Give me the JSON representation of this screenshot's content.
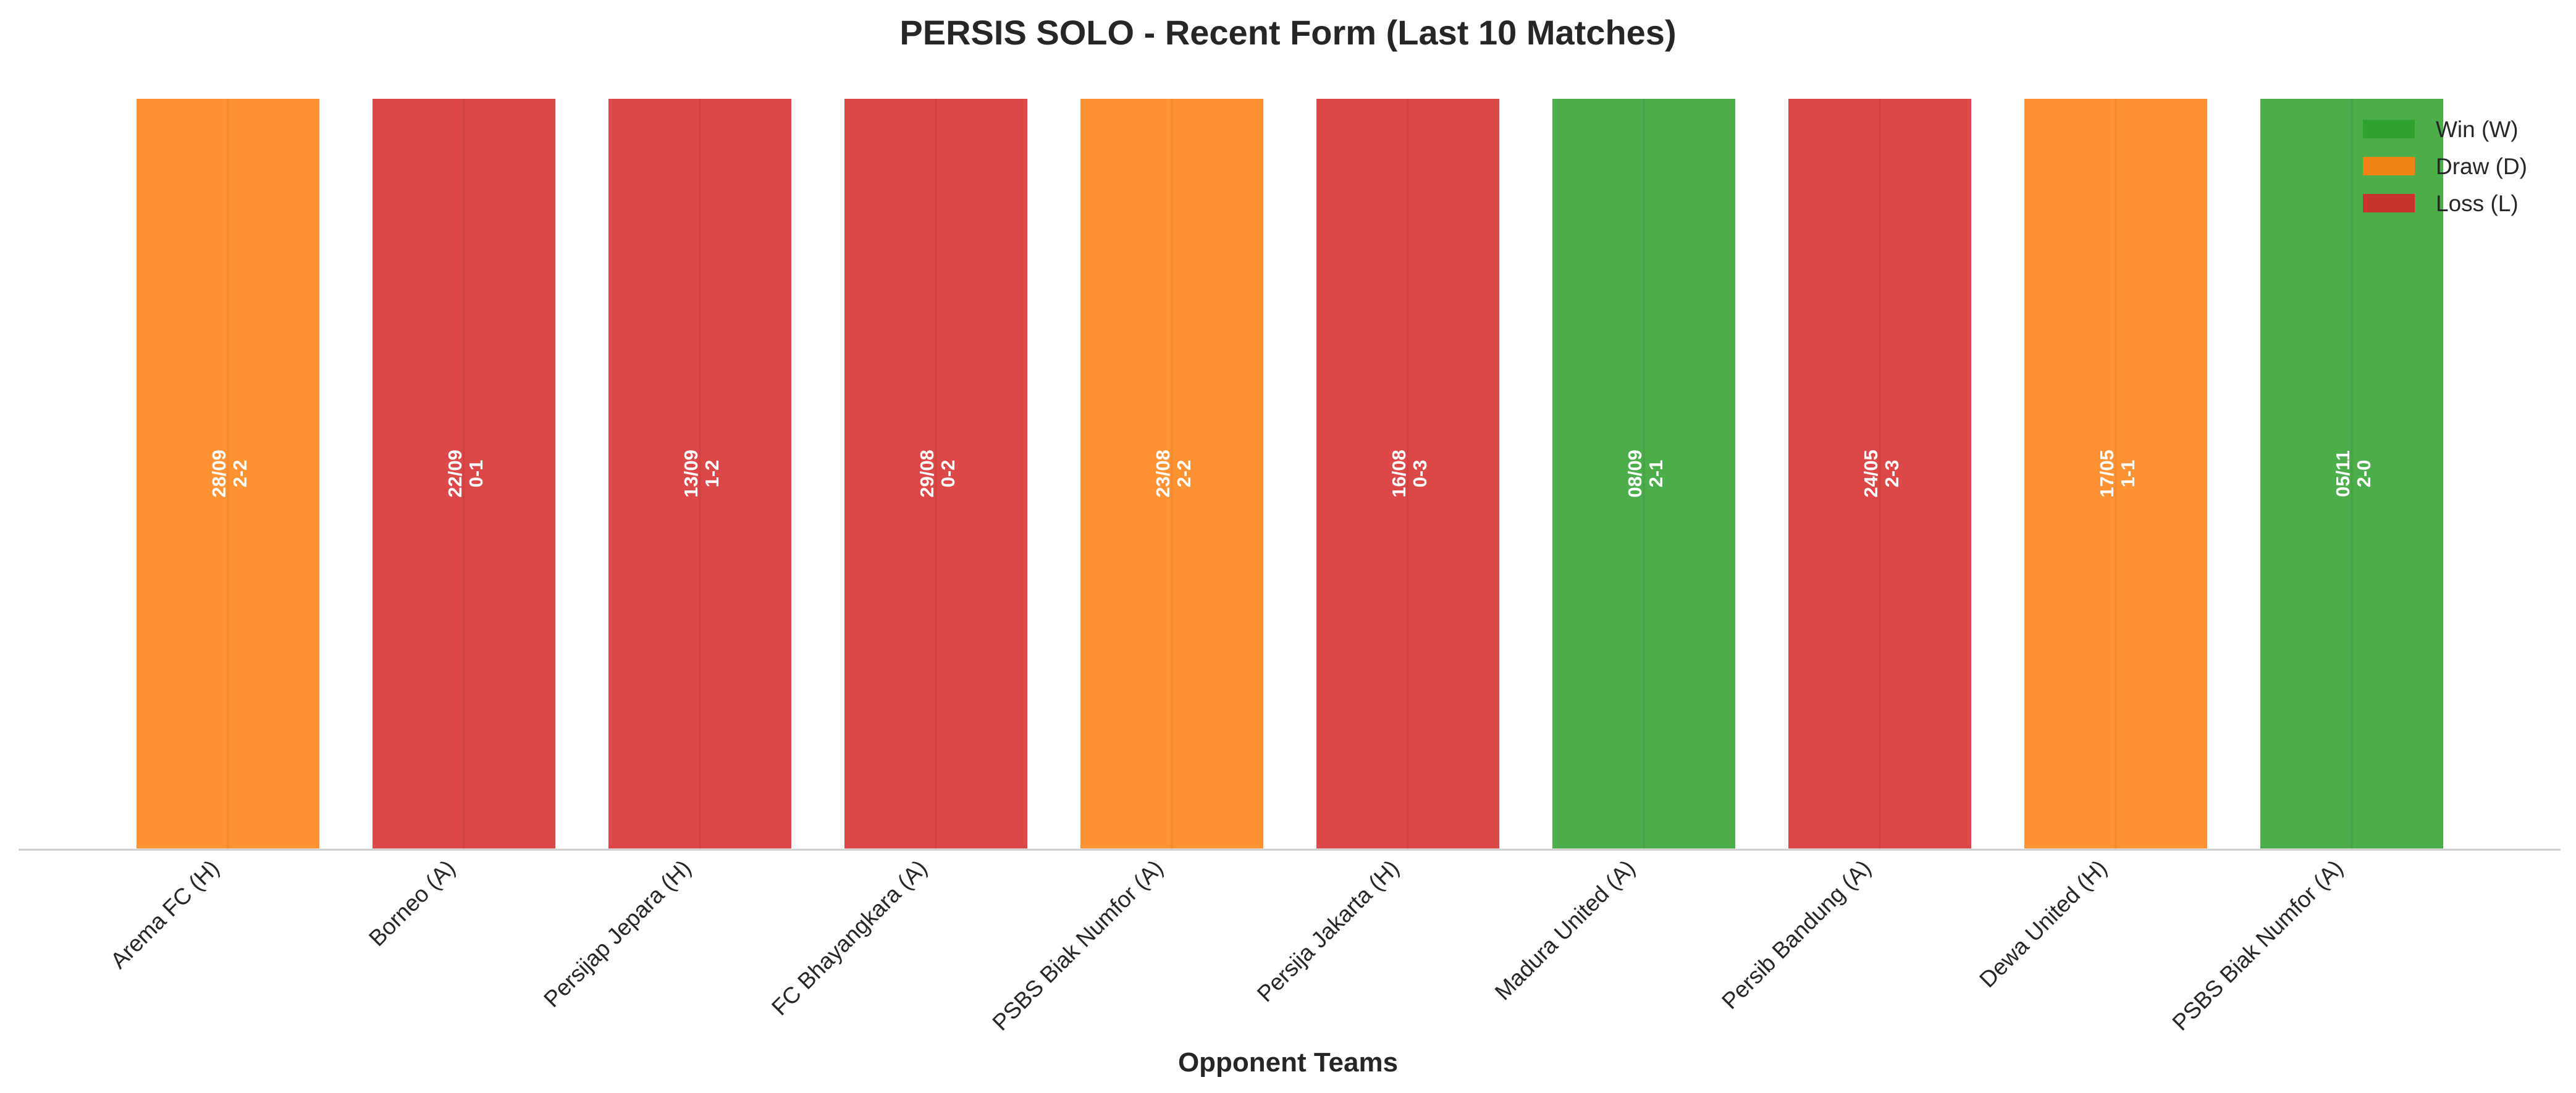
{
  "chart_data": {
    "type": "bar",
    "title": "PERSIS SOLO - Recent Form (Last 10 Matches)",
    "xlabel": "Opponent Teams",
    "ylabel": "",
    "grid": false,
    "legend_position": "top-right",
    "categories": [
      "Arema FC (H)",
      "Borneo (A)",
      "Persijap Jepara (H)",
      "FC Bhayangkara (A)",
      "PSBS Biak Numfor (A)",
      "Persija Jakarta (H)",
      "Madura United (A)",
      "Persib Bandung (A)",
      "Dewa United (H)",
      "PSBS Biak Numfor (A)"
    ],
    "values": [
      1,
      1,
      1,
      1,
      1,
      1,
      1,
      1,
      1,
      1
    ],
    "results": [
      "D",
      "L",
      "L",
      "L",
      "D",
      "L",
      "W",
      "L",
      "D",
      "W"
    ],
    "dates": [
      "28/09",
      "22/09",
      "13/09",
      "29/08",
      "23/08",
      "16/08",
      "08/09",
      "24/05",
      "17/05",
      "05/11"
    ],
    "scores": [
      "2-2",
      "0-1",
      "1-2",
      "0-2",
      "2-2",
      "0-3",
      "2-1",
      "2-3",
      "1-1",
      "2-0"
    ],
    "legend": [
      {
        "key": "W",
        "label": "Win (W)",
        "color": "#2ca02c"
      },
      {
        "key": "D",
        "label": "Draw (D)",
        "color": "#ff7f0e"
      },
      {
        "key": "L",
        "label": "Loss (L)",
        "color": "#d62728"
      }
    ]
  }
}
